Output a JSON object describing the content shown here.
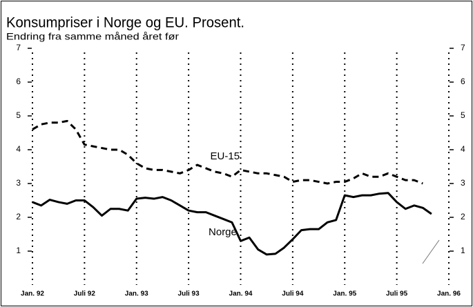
{
  "chart_data": {
    "type": "line",
    "title": "Konsumpriser i Norge og EU. Prosent.",
    "subtitle": "Endring fra samme måned året før",
    "x": [
      0,
      1,
      2,
      3,
      4,
      5,
      6,
      7,
      8,
      9,
      10,
      11,
      12,
      13,
      14,
      15,
      16,
      17,
      18,
      19,
      20,
      21,
      22,
      23,
      24,
      25,
      26,
      27,
      28,
      29,
      30,
      31,
      32,
      33,
      34,
      35,
      36,
      37,
      38,
      39,
      40,
      41,
      42,
      43,
      44,
      45,
      46
    ],
    "xlim": [
      0,
      48
    ],
    "xticks": [
      {
        "value": 0,
        "label": "Jan. 92"
      },
      {
        "value": 6,
        "label": "Juli 92"
      },
      {
        "value": 12,
        "label": "Jan. 93"
      },
      {
        "value": 18,
        "label": "Juli 93"
      },
      {
        "value": 24,
        "label": "Jan. 94"
      },
      {
        "value": 30,
        "label": "Juli 94"
      },
      {
        "value": 36,
        "label": "Jan. 95"
      },
      {
        "value": 42,
        "label": "Juli 95"
      },
      {
        "value": 48,
        "label": "Jan. 96"
      }
    ],
    "ylim": [
      0,
      7
    ],
    "yticks": [
      1,
      2,
      3,
      4,
      5,
      6,
      7
    ],
    "grid": true,
    "series": [
      {
        "name": "Norge",
        "color": "#000000",
        "line_style": "solid",
        "values": [
          2.45,
          2.35,
          2.52,
          2.45,
          2.4,
          2.5,
          2.5,
          2.3,
          2.05,
          2.25,
          2.25,
          2.2,
          2.55,
          2.58,
          2.55,
          2.6,
          2.5,
          2.35,
          2.2,
          2.15,
          2.15,
          2.05,
          1.95,
          1.85,
          1.3,
          1.4,
          1.05,
          0.9,
          0.92,
          1.1,
          1.35,
          1.62,
          1.65,
          1.65,
          1.85,
          1.92,
          2.65,
          2.6,
          2.65,
          2.65,
          2.7,
          2.72,
          2.45,
          2.25,
          2.35,
          2.28,
          2.1
        ]
      },
      {
        "name": "EU-15",
        "color": "#000000",
        "line_style": "dashed",
        "values": [
          4.6,
          4.75,
          4.8,
          4.8,
          4.85,
          4.6,
          4.15,
          4.1,
          4.05,
          4.0,
          4.0,
          3.85,
          3.6,
          3.45,
          3.4,
          3.4,
          3.35,
          3.3,
          3.4,
          3.55,
          3.45,
          3.35,
          3.3,
          3.2,
          3.4,
          3.35,
          3.3,
          3.3,
          3.25,
          3.2,
          3.05,
          3.1,
          3.1,
          3.05,
          3.0,
          3.05,
          3.05,
          3.15,
          3.3,
          3.2,
          3.2,
          3.3,
          3.2,
          3.1,
          3.1,
          3.0,
          null
        ]
      }
    ],
    "annotations": [
      {
        "text": "EU-15",
        "x": 20.5,
        "y": 3.8
      },
      {
        "text": "Norge",
        "x": 20.3,
        "y": 1.55
      }
    ]
  }
}
